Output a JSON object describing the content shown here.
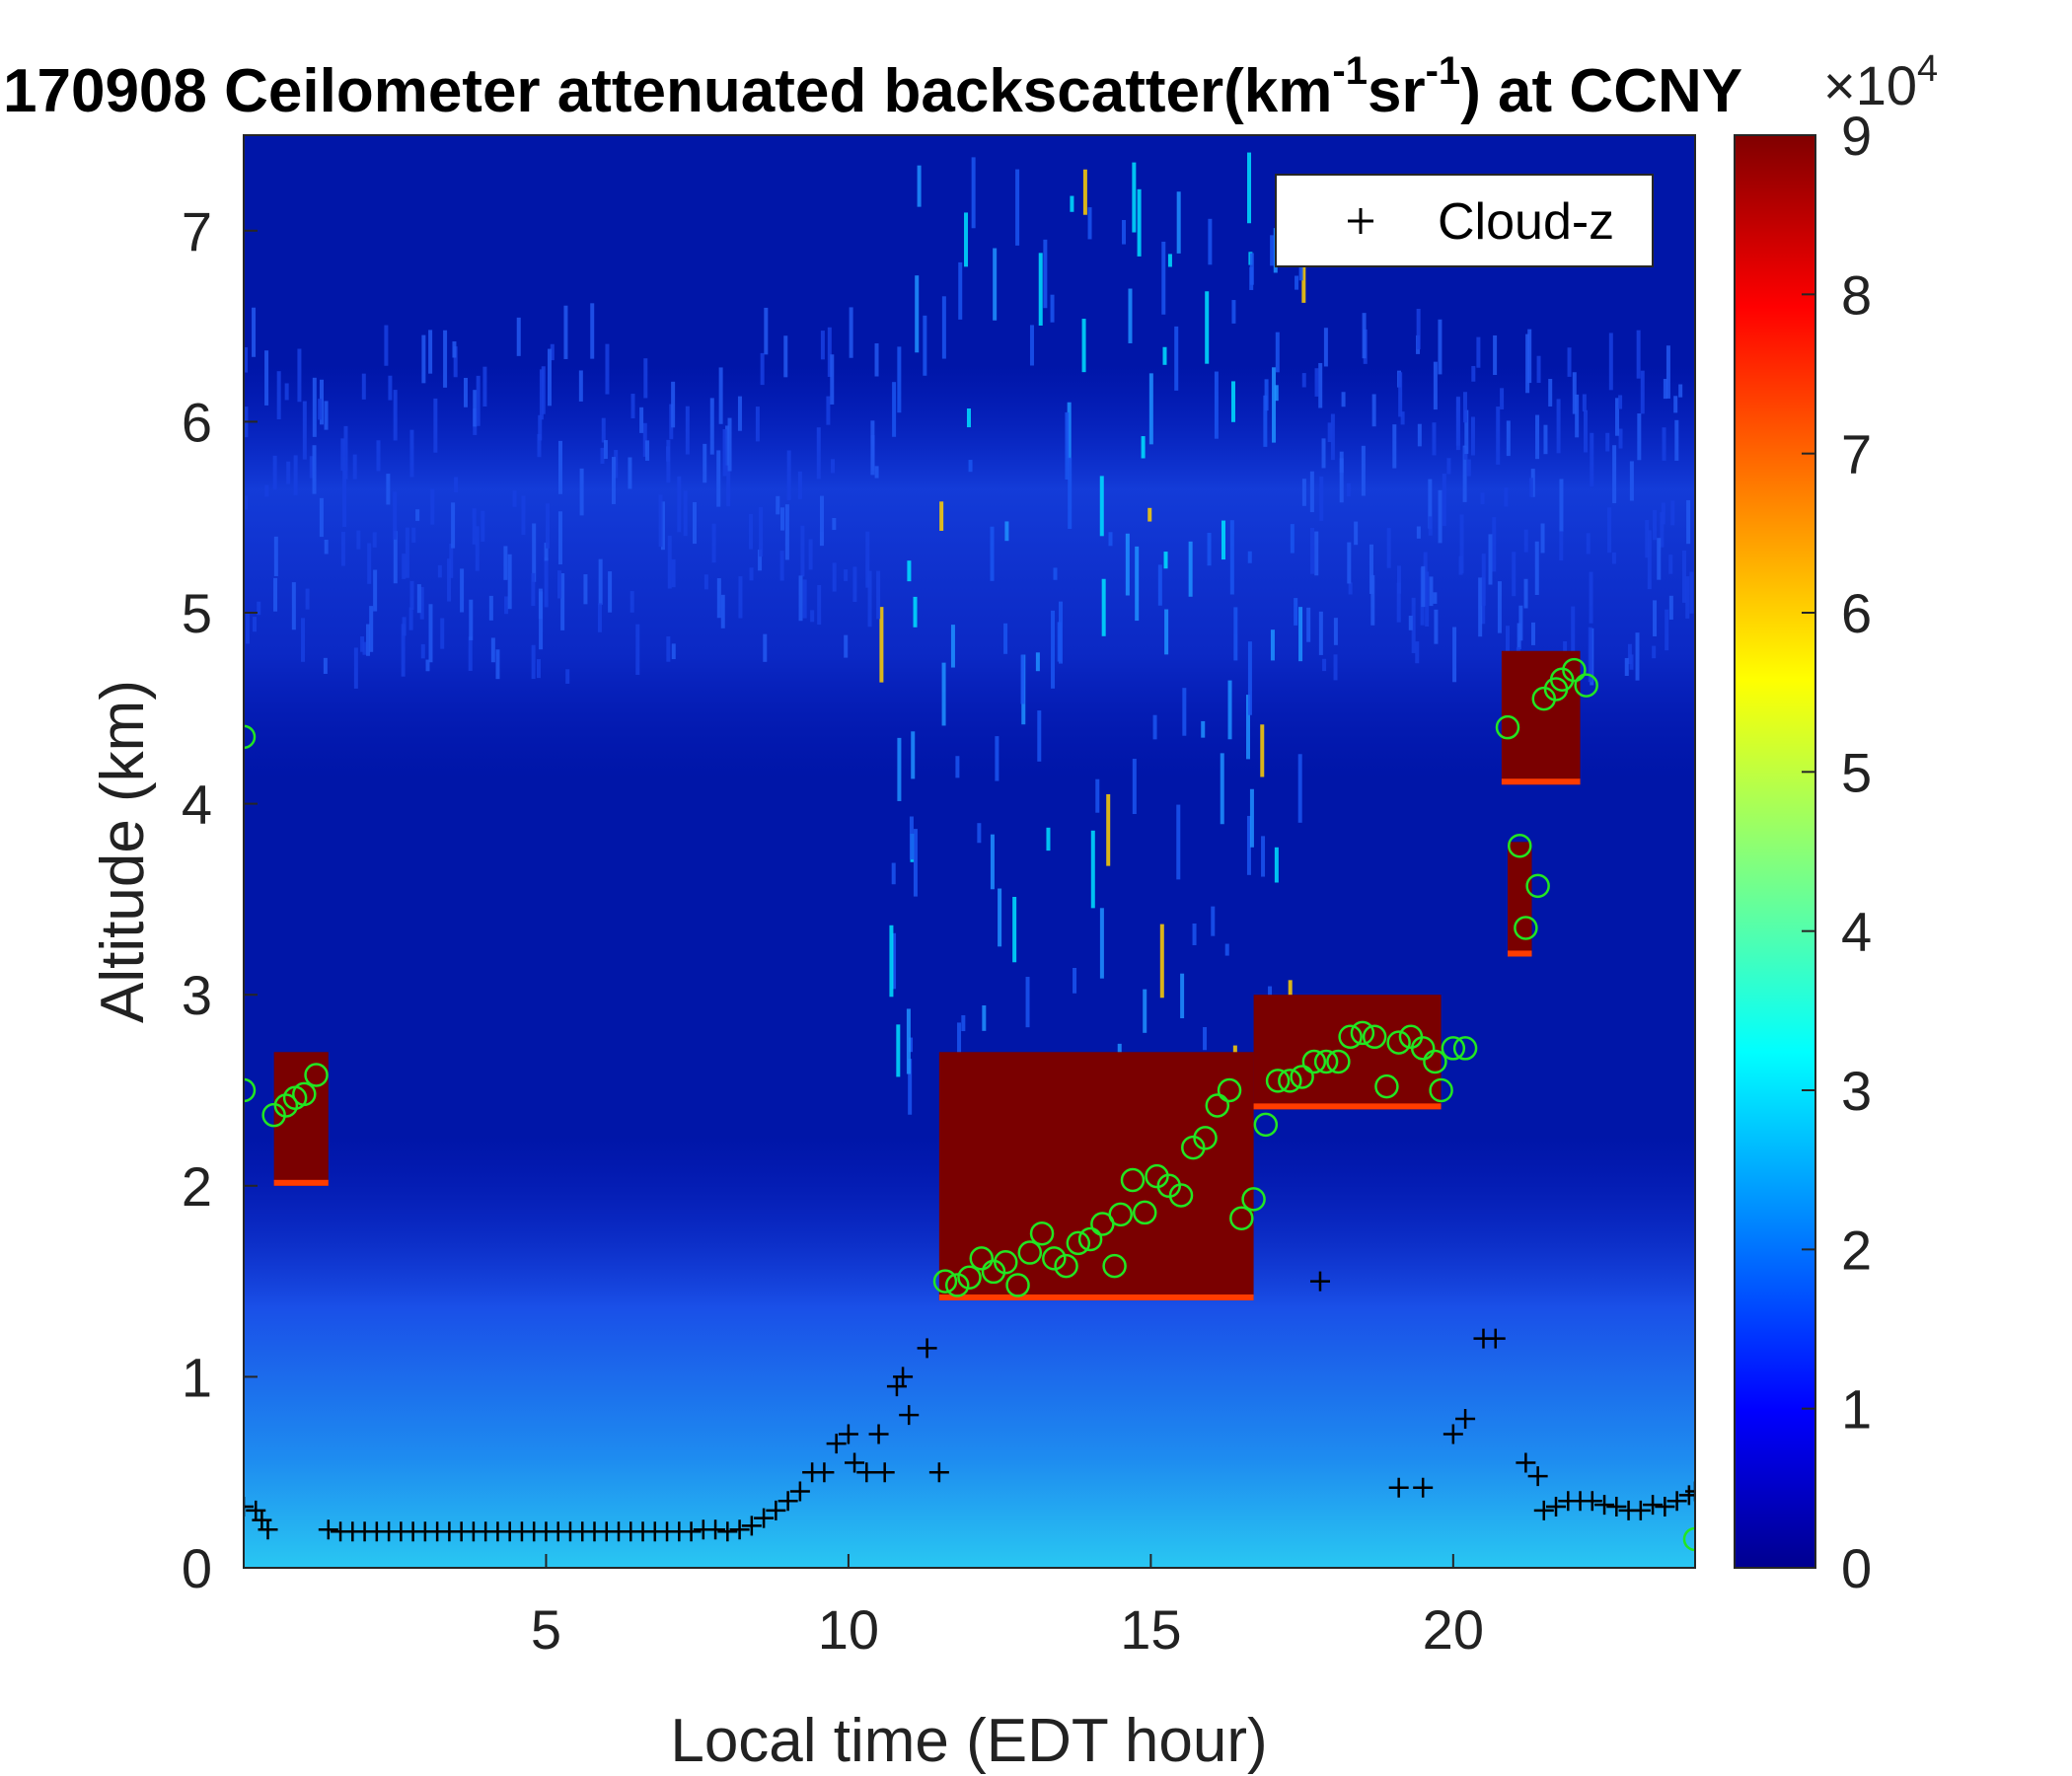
{
  "chart_data": {
    "type": "heatmap",
    "title": {
      "prefix": "170908 Ceilometer attenuated backscatter(km",
      "sup1": "-1",
      "mid": "sr",
      "sup2": "-1",
      "suffix": ") at CCNY"
    },
    "xlabel": "Local time (EDT hour)",
    "ylabel": "Altitude (km)",
    "xlim": [
      0,
      24
    ],
    "ylim": [
      0,
      7.5
    ],
    "xticks": [
      5,
      10,
      15,
      20
    ],
    "yticks": [
      0,
      1,
      2,
      3,
      4,
      5,
      6,
      7
    ],
    "colorbar": {
      "range": [
        0,
        9
      ],
      "ticks": [
        0,
        1,
        2,
        3,
        4,
        5,
        6,
        7,
        8,
        9
      ],
      "multiplier_base": "×10",
      "multiplier_exp": "4",
      "colormap": "jet"
    },
    "legend": {
      "entries": [
        "Cloud-z"
      ],
      "placement": "top-right"
    },
    "cloud_layers": [
      {
        "t_start": 0.5,
        "t_end": 1.4,
        "z_bottom": 2.0,
        "z_top": 2.7
      },
      {
        "t_start": 11.5,
        "t_end": 16.7,
        "z_bottom": 1.4,
        "z_top": 2.7
      },
      {
        "t_start": 16.7,
        "t_end": 19.8,
        "z_bottom": 2.4,
        "z_top": 3.0
      },
      {
        "t_start": 20.8,
        "t_end": 22.1,
        "z_bottom": 4.1,
        "z_top": 4.8
      },
      {
        "t_start": 20.9,
        "t_end": 21.3,
        "z_bottom": 3.2,
        "z_top": 3.8
      }
    ],
    "series": [
      {
        "name": "Cloud-z",
        "marker": "+",
        "color": "#000000",
        "points": [
          [
            0.0,
            0.32
          ],
          [
            0.2,
            0.3
          ],
          [
            0.3,
            0.25
          ],
          [
            0.4,
            0.2
          ],
          [
            1.4,
            0.2
          ],
          [
            1.6,
            0.19
          ],
          [
            1.8,
            0.19
          ],
          [
            2.0,
            0.19
          ],
          [
            2.2,
            0.19
          ],
          [
            2.4,
            0.19
          ],
          [
            2.6,
            0.19
          ],
          [
            2.8,
            0.19
          ],
          [
            3.0,
            0.19
          ],
          [
            3.2,
            0.19
          ],
          [
            3.4,
            0.19
          ],
          [
            3.6,
            0.19
          ],
          [
            3.8,
            0.19
          ],
          [
            4.0,
            0.19
          ],
          [
            4.2,
            0.19
          ],
          [
            4.4,
            0.19
          ],
          [
            4.6,
            0.19
          ],
          [
            4.8,
            0.19
          ],
          [
            5.0,
            0.19
          ],
          [
            5.2,
            0.19
          ],
          [
            5.4,
            0.19
          ],
          [
            5.6,
            0.19
          ],
          [
            5.8,
            0.19
          ],
          [
            6.0,
            0.19
          ],
          [
            6.2,
            0.19
          ],
          [
            6.4,
            0.19
          ],
          [
            6.6,
            0.19
          ],
          [
            6.8,
            0.19
          ],
          [
            7.0,
            0.19
          ],
          [
            7.2,
            0.19
          ],
          [
            7.4,
            0.19
          ],
          [
            7.6,
            0.2
          ],
          [
            7.8,
            0.2
          ],
          [
            8.0,
            0.19
          ],
          [
            8.2,
            0.2
          ],
          [
            8.4,
            0.22
          ],
          [
            8.6,
            0.26
          ],
          [
            8.8,
            0.3
          ],
          [
            9.0,
            0.35
          ],
          [
            9.2,
            0.4
          ],
          [
            9.4,
            0.5
          ],
          [
            9.6,
            0.5
          ],
          [
            9.8,
            0.65
          ],
          [
            10.0,
            0.7
          ],
          [
            10.1,
            0.55
          ],
          [
            10.3,
            0.5
          ],
          [
            10.5,
            0.7
          ],
          [
            10.6,
            0.5
          ],
          [
            10.8,
            0.95
          ],
          [
            10.9,
            1.0
          ],
          [
            11.0,
            0.8
          ],
          [
            11.3,
            1.15
          ],
          [
            11.5,
            0.5
          ],
          [
            17.8,
            1.5
          ],
          [
            19.1,
            0.42
          ],
          [
            19.5,
            0.42
          ],
          [
            20.0,
            0.7
          ],
          [
            20.2,
            0.78
          ],
          [
            20.5,
            1.2
          ],
          [
            20.7,
            1.2
          ],
          [
            21.2,
            0.55
          ],
          [
            21.4,
            0.48
          ],
          [
            21.5,
            0.3
          ],
          [
            21.7,
            0.32
          ],
          [
            21.9,
            0.35
          ],
          [
            22.1,
            0.35
          ],
          [
            22.3,
            0.35
          ],
          [
            22.5,
            0.33
          ],
          [
            22.7,
            0.32
          ],
          [
            22.9,
            0.3
          ],
          [
            23.1,
            0.3
          ],
          [
            23.3,
            0.33
          ],
          [
            23.5,
            0.32
          ],
          [
            23.7,
            0.35
          ],
          [
            23.9,
            0.38
          ],
          [
            24.0,
            0.4
          ]
        ]
      },
      {
        "marker": "o",
        "color": "#22e622",
        "points": [
          [
            0.0,
            4.35
          ],
          [
            0.0,
            2.5
          ],
          [
            0.5,
            2.37
          ],
          [
            0.7,
            2.42
          ],
          [
            0.85,
            2.46
          ],
          [
            1.0,
            2.48
          ],
          [
            1.2,
            2.58
          ],
          [
            11.6,
            1.5
          ],
          [
            11.8,
            1.48
          ],
          [
            12.0,
            1.52
          ],
          [
            12.2,
            1.62
          ],
          [
            12.4,
            1.55
          ],
          [
            12.6,
            1.6
          ],
          [
            12.8,
            1.48
          ],
          [
            13.0,
            1.65
          ],
          [
            13.2,
            1.75
          ],
          [
            13.4,
            1.62
          ],
          [
            13.6,
            1.58
          ],
          [
            13.8,
            1.7
          ],
          [
            14.0,
            1.72
          ],
          [
            14.2,
            1.8
          ],
          [
            14.4,
            1.58
          ],
          [
            14.5,
            1.85
          ],
          [
            14.7,
            2.03
          ],
          [
            14.9,
            1.86
          ],
          [
            15.1,
            2.05
          ],
          [
            15.3,
            2.0
          ],
          [
            15.5,
            1.95
          ],
          [
            15.7,
            2.2
          ],
          [
            15.9,
            2.25
          ],
          [
            16.1,
            2.42
          ],
          [
            16.3,
            2.5
          ],
          [
            16.5,
            1.83
          ],
          [
            16.7,
            1.93
          ],
          [
            16.9,
            2.32
          ],
          [
            17.1,
            2.55
          ],
          [
            17.3,
            2.55
          ],
          [
            17.5,
            2.57
          ],
          [
            17.7,
            2.65
          ],
          [
            17.9,
            2.65
          ],
          [
            18.1,
            2.65
          ],
          [
            18.3,
            2.78
          ],
          [
            18.5,
            2.8
          ],
          [
            18.7,
            2.78
          ],
          [
            18.9,
            2.52
          ],
          [
            19.1,
            2.75
          ],
          [
            19.3,
            2.78
          ],
          [
            19.5,
            2.72
          ],
          [
            19.7,
            2.65
          ],
          [
            19.8,
            2.5
          ],
          [
            20.0,
            2.72
          ],
          [
            20.2,
            2.72
          ],
          [
            20.9,
            4.4
          ],
          [
            21.1,
            3.78
          ],
          [
            21.2,
            3.35
          ],
          [
            21.4,
            3.57
          ],
          [
            21.5,
            4.55
          ],
          [
            21.7,
            4.6
          ],
          [
            21.8,
            4.65
          ],
          [
            22.0,
            4.7
          ],
          [
            22.2,
            4.62
          ],
          [
            24.0,
            0.15
          ]
        ]
      }
    ]
  }
}
